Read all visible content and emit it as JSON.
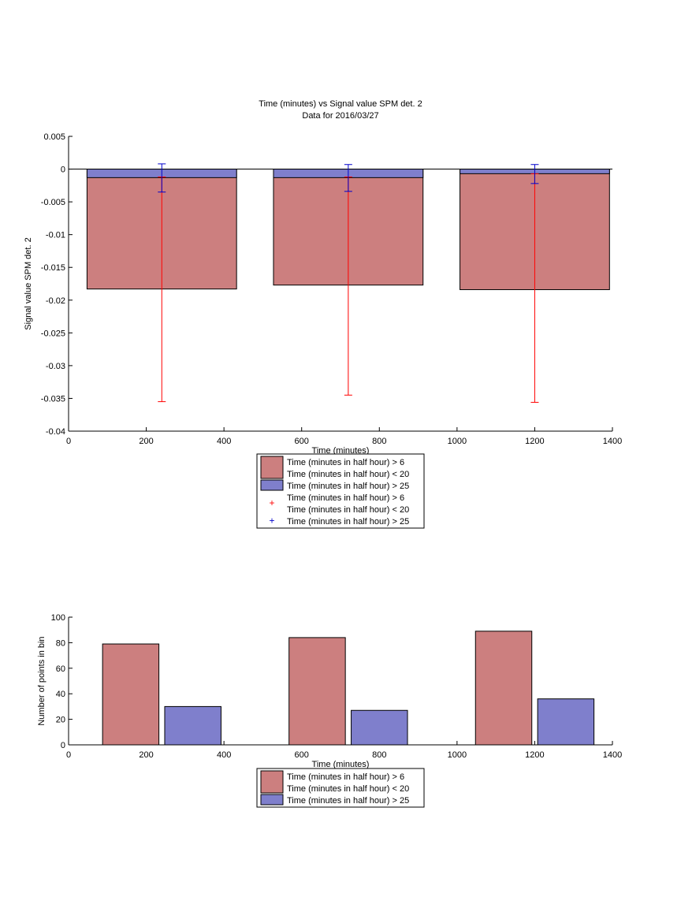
{
  "chart_data": [
    {
      "type": "bar",
      "title": "Time (minutes) vs Signal value SPM det. 2",
      "subtitle": "Data for 2016/03/27",
      "xlabel": "Time (minutes)",
      "ylabel": "Signal value SPM det. 2",
      "xlim": [
        0,
        1400
      ],
      "ylim": [
        -0.04,
        0.005
      ],
      "xticks": [
        0,
        200,
        400,
        600,
        800,
        1000,
        1200,
        1400
      ],
      "xtick_labels": [
        "0",
        "200",
        "400",
        "600",
        "800",
        "1000",
        "1200",
        "1400"
      ],
      "yticks": [
        0.005,
        0,
        -0.005,
        -0.01,
        -0.015,
        -0.02,
        -0.025,
        -0.03,
        -0.035,
        -0.04
      ],
      "ytick_labels": [
        "0.005",
        "0",
        "-0.005",
        "-0.01",
        "-0.015",
        "-0.02",
        "-0.025",
        "-0.03",
        "-0.035",
        "-0.04"
      ],
      "grid": false,
      "legend_position": "below",
      "zero_line": true,
      "bars": {
        "width": 385,
        "centers": [
          240,
          720,
          1200
        ],
        "series": [
          {
            "name": "Time (minutes in half hour) > 6\nTime (minutes in half hour) < 20",
            "color": "#cc7f7f",
            "values": [
              -0.0183,
              -0.0177,
              -0.0184
            ]
          },
          {
            "name": "Time (minutes in half hour) > 25",
            "color": "#7f7fcc",
            "values": [
              -0.0013,
              -0.0013,
              -0.0007
            ]
          }
        ]
      },
      "errorbars": [
        {
          "name": "Time (minutes in half hour) > 6\nTime (minutes in half hour) < 20",
          "color": "#ff0000",
          "x": [
            240,
            720,
            1200
          ],
          "low": [
            -0.0355,
            -0.0345,
            -0.0356
          ],
          "high": [
            -0.0012,
            -0.0012,
            -0.0007
          ]
        },
        {
          "name": "Time (minutes in half hour) > 25",
          "color": "#0000cc",
          "x": [
            240,
            720,
            1200
          ],
          "low": [
            -0.0035,
            -0.0034,
            -0.0022
          ],
          "high": [
            0.0008,
            0.0007,
            0.0007
          ]
        }
      ],
      "legend": [
        {
          "kind": "patch",
          "color": "#cc7f7f",
          "lines": [
            "Time (minutes in half hour) > 6",
            "Time (minutes in half hour) < 20"
          ]
        },
        {
          "kind": "patch",
          "color": "#7f7fcc",
          "lines": [
            "Time (minutes in half hour) > 25"
          ]
        },
        {
          "kind": "marker",
          "color": "#ff0000",
          "lines": [
            "Time (minutes in half hour) > 6",
            "Time (minutes in half hour) < 20"
          ]
        },
        {
          "kind": "marker",
          "color": "#0000cc",
          "lines": [
            "Time (minutes in half hour) > 25"
          ]
        }
      ]
    },
    {
      "type": "bar",
      "title": "",
      "xlabel": "Time (minutes)",
      "ylabel": "Number of points in bin",
      "xlim": [
        0,
        1400
      ],
      "ylim": [
        0,
        100
      ],
      "xticks": [
        0,
        200,
        400,
        600,
        800,
        1000,
        1200,
        1400
      ],
      "xtick_labels": [
        "0",
        "200",
        "400",
        "600",
        "800",
        "1000",
        "1200",
        "1400"
      ],
      "yticks": [
        0,
        20,
        40,
        60,
        80,
        100
      ],
      "ytick_labels": [
        "0",
        "20",
        "40",
        "60",
        "80",
        "100"
      ],
      "grid": false,
      "legend_position": "below",
      "bars": {
        "width": 145,
        "series": [
          {
            "name": "Time (minutes in half hour) > 6\nTime (minutes in half hour) < 20",
            "color": "#cc7f7f",
            "x": [
              160,
              640,
              1120
            ],
            "values": [
              79,
              84,
              89
            ]
          },
          {
            "name": "Time (minutes in half hour) > 25",
            "color": "#7f7fcc",
            "x": [
              320,
              800,
              1280
            ],
            "values": [
              30,
              27,
              36
            ]
          }
        ]
      },
      "legend": [
        {
          "kind": "patch",
          "color": "#cc7f7f",
          "lines": [
            "Time (minutes in half hour) > 6",
            "Time (minutes in half hour) < 20"
          ]
        },
        {
          "kind": "patch",
          "color": "#7f7fcc",
          "lines": [
            "Time (minutes in half hour) > 25"
          ]
        }
      ]
    }
  ]
}
